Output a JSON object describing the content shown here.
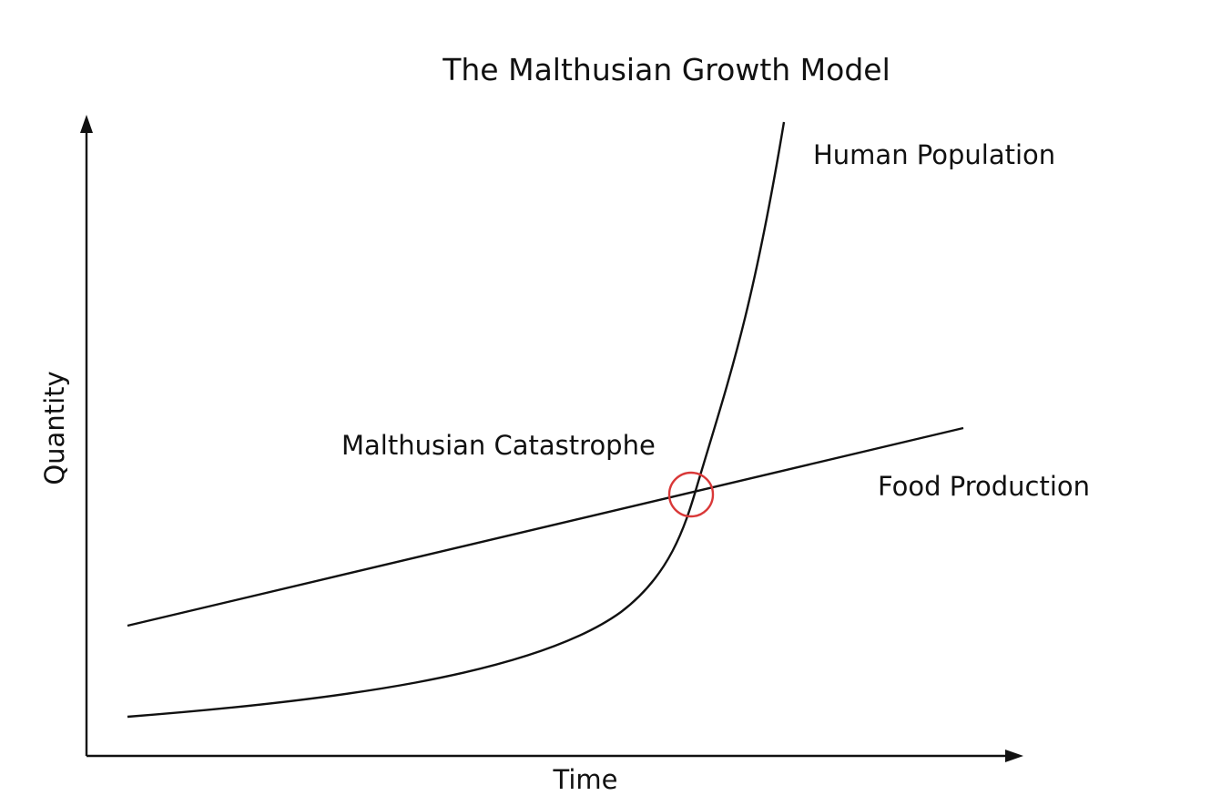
{
  "diagram": {
    "title": "The Malthusian Growth Model",
    "x_axis_label": "Time",
    "y_axis_label": "Quantity",
    "curves": [
      {
        "name": "Human Population",
        "shape": "exponential"
      },
      {
        "name": "Food Production",
        "shape": "linear"
      }
    ],
    "annotation": "Malthusian Catastrophe",
    "colors": {
      "lines": "#111111",
      "catastrophe_marker": "#d93838"
    }
  }
}
